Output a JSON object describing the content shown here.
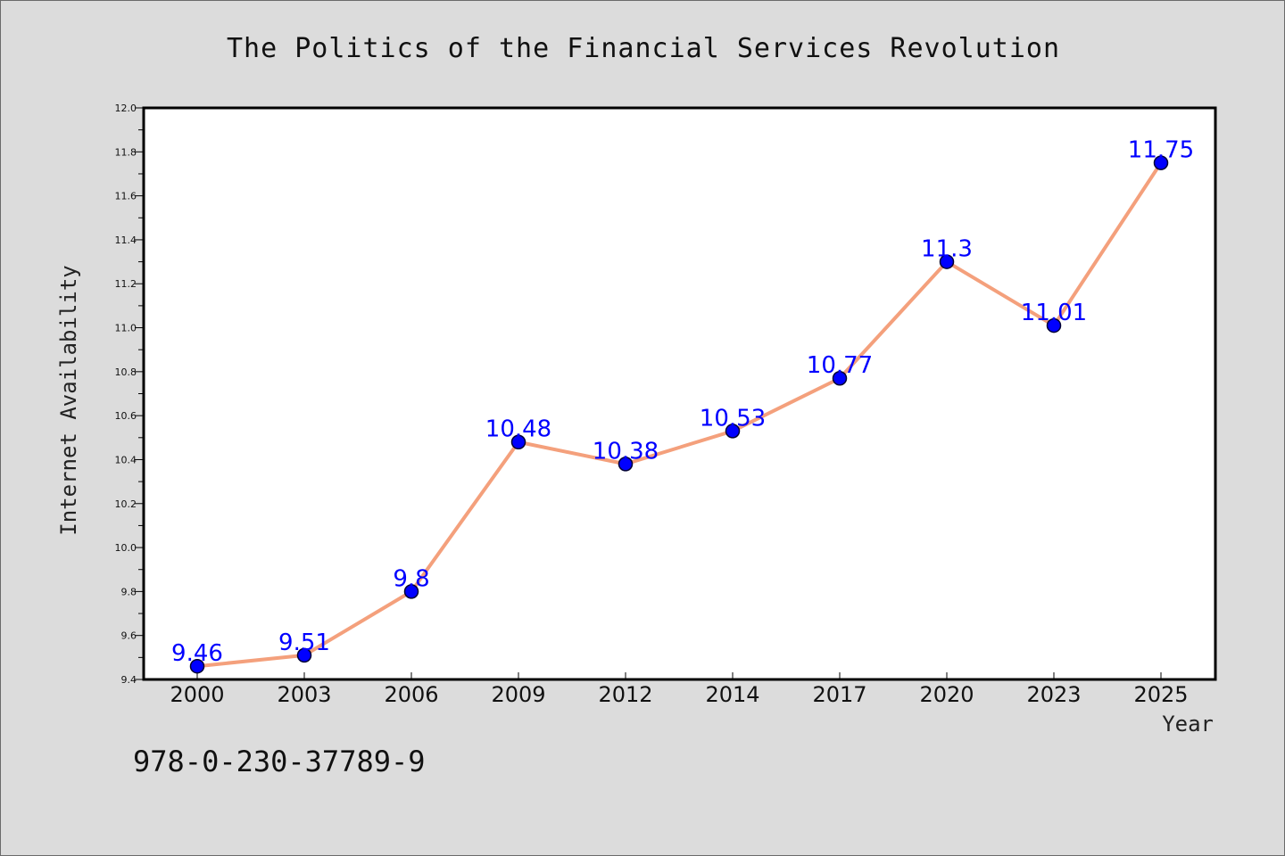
{
  "chart_data": {
    "type": "line",
    "title": "The Politics of the Financial Services Revolution",
    "xlabel": "Year",
    "ylabel": "Internet Availability",
    "categories": [
      "2000",
      "2003",
      "2006",
      "2009",
      "2012",
      "2014",
      "2017",
      "2020",
      "2023",
      "2025"
    ],
    "values": [
      9.46,
      9.51,
      9.8,
      10.48,
      10.38,
      10.53,
      10.77,
      11.3,
      11.01,
      11.75
    ],
    "value_labels": [
      "9.46",
      "9.51",
      "9.8",
      "10.48",
      "10.38",
      "10.53",
      "10.77",
      "11.3",
      "11.01",
      "11.75"
    ],
    "ylim": [
      9.4,
      12.0
    ],
    "y_ticks": [
      "9.4",
      "9.6",
      "9.8",
      "10.0",
      "10.2",
      "10.4",
      "10.6",
      "10.8",
      "11.0",
      "11.2",
      "11.4",
      "11.6",
      "11.8",
      "12.0"
    ],
    "grid": false,
    "legend": "none",
    "colors": {
      "line": "#f4a07c",
      "marker": "#0000ff",
      "marker_edge": "#000033",
      "data_label": "#0000ff",
      "plot_background": "#ffffff",
      "figure_background": "#dcdcdc"
    }
  },
  "footer": {
    "isbn": "978-0-230-37789-9"
  }
}
